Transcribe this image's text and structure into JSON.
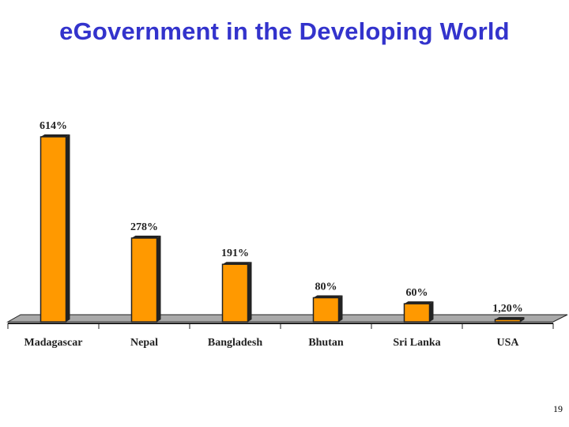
{
  "slide": {
    "title": "eGovernment in the Developing World",
    "page_number": "19"
  },
  "colors": {
    "title": "#3333cc",
    "bar_fill": "#ff9900",
    "bar_edge": "#222222",
    "floor": "#a9a9a9"
  },
  "chart_data": {
    "type": "bar",
    "title": "",
    "xlabel": "",
    "ylabel": "",
    "ylim": [
      0,
      650
    ],
    "grid": false,
    "categories": [
      "Madagascar",
      "Nepal",
      "Bangladesh",
      "Bhutan",
      "Sri Lanka",
      "USA"
    ],
    "values": [
      614,
      278,
      191,
      80,
      60,
      1.2
    ],
    "labels": [
      "614%",
      "278%",
      "191%",
      "80%",
      "60%",
      "1,20%"
    ]
  }
}
